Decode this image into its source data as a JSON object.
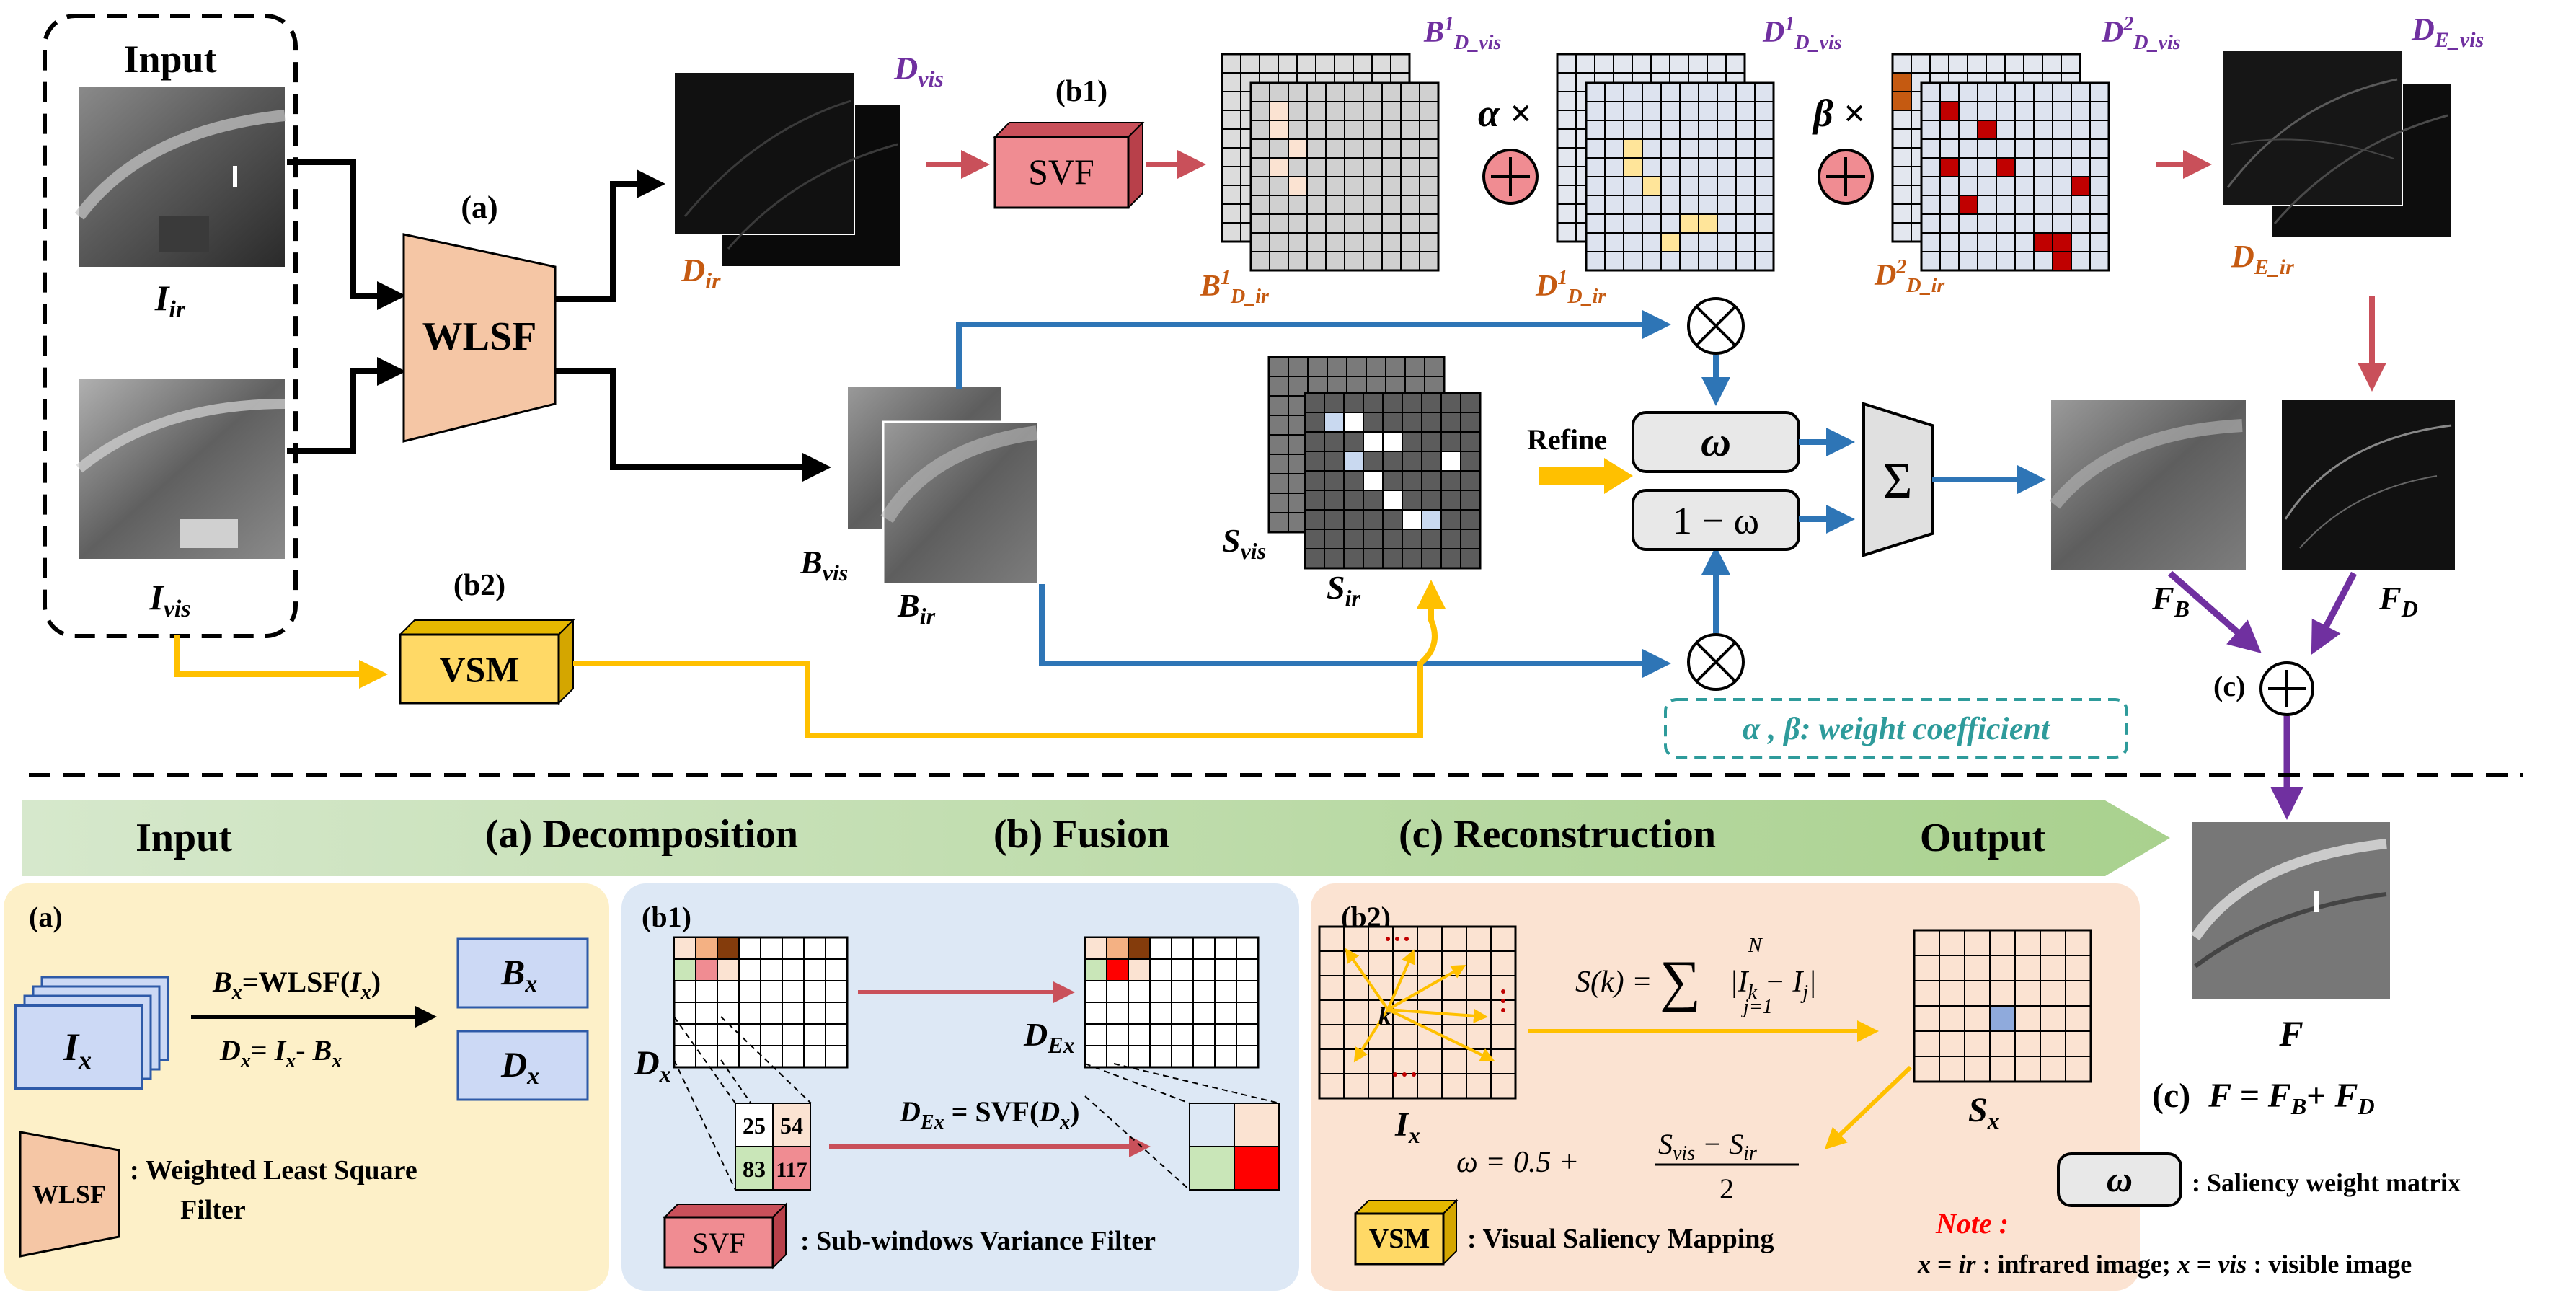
{
  "input": {
    "title": "Input",
    "ir_label": "I",
    "ir_sub": "ir",
    "vis_label": "I",
    "vis_sub": "vis"
  },
  "modules": {
    "a_label": "(a)",
    "wlsf": "WLSF",
    "b1_label": "(b1)",
    "svf": "SVF",
    "b2_label": "(b2)",
    "vsm": "VSM",
    "c_label": "(c)"
  },
  "detail": {
    "d_vis": "D",
    "d_vis_sub": "vis",
    "d_ir": "D",
    "d_ir_sub": "ir",
    "b1_dvis": "B",
    "b1_dvis_sup": "1",
    "b1_dvis_sub": "D_vis",
    "b1_dir": "B",
    "b1_dir_sup": "1",
    "b1_dir_sub": "D_ir",
    "d1_dvis": "D",
    "d1_dvis_sup": "1",
    "d1_dvis_sub": "D_vis",
    "d1_dir": "D",
    "d1_dir_sup": "1",
    "d1_dir_sub": "D_ir",
    "d2_dvis": "D",
    "d2_dvis_sup": "2",
    "d2_dvis_sub": "D_vis",
    "d2_dir": "D",
    "d2_dir_sup": "2",
    "d2_dir_sub": "D_ir",
    "de_vis": "D",
    "de_vis_sub": "E_vis",
    "de_ir": "D",
    "de_ir_sub": "E_ir",
    "alpha_times": "α ×",
    "beta_times": "β ×"
  },
  "base": {
    "b_vis": "B",
    "b_vis_sub": "vis",
    "b_ir": "B",
    "b_ir_sub": "ir",
    "s_vis": "S",
    "s_vis_sub": "vis",
    "s_ir": "S",
    "s_ir_sub": "ir",
    "refine": "Refine",
    "omega": "ω",
    "one_minus_omega": "1 − ω",
    "sigma": "Σ",
    "f_b": "F",
    "f_b_sub": "B",
    "f_d": "F",
    "f_d_sub": "D",
    "weight_note": "α , β: weight coefficient"
  },
  "stages": [
    "Input",
    "(a) Decomposition",
    "(b) Fusion",
    "(c) Reconstruction",
    "Output"
  ],
  "panel_a": {
    "label": "(a)",
    "ix": "I",
    "ix_sub": "x",
    "eq1": "B",
    "eq1_sub": "x",
    "eq1_rest": "=WLSF(",
    "eq1_i": "I",
    "eq1_isub": "x",
    "eq1_close": ")",
    "eq2": "D",
    "eq2_sub": "x",
    "eq2_rest": "= ",
    "eq2_i": "I",
    "eq2_isub": "x",
    "eq2_minus": "- ",
    "eq2_b": "B",
    "eq2_bsub": "x",
    "bx": "B",
    "bx_sub": "x",
    "dx": "D",
    "dx_sub": "x",
    "wlsf": "WLSF",
    "legend1": ": Weighted Least Square",
    "legend2": "Filter"
  },
  "panel_b1": {
    "label": "(b1)",
    "dx": "D",
    "dx_sub": "x",
    "dex": "D",
    "dex_sub": "Ex",
    "values": [
      "25",
      "54",
      "83",
      "117"
    ],
    "eq_left": "D",
    "eq_left_sub": "Ex",
    "eq_mid": " = SVF(",
    "eq_d": "D",
    "eq_dsub": "x",
    "eq_close": ")",
    "svf": "SVF",
    "legend": ": Sub-windows Variance Filter"
  },
  "panel_b2": {
    "label": "(b2)",
    "k": "k",
    "ix": "I",
    "ix_sub": "x",
    "sx": "S",
    "sx_sub": "x",
    "s_formula_lhs": "S(k) = ",
    "sum_top": "N",
    "sum_bottom": "j=1",
    "s_formula_rhs": "|I",
    "s_k": "k",
    "s_minus": " − I",
    "s_j": "j",
    "s_close": "|",
    "omega_lhs": "ω = 0.5 + ",
    "omega_num": "S",
    "omega_num_sub1": "vis",
    "omega_num_mid": " − S",
    "omega_num_sub2": "ir",
    "omega_den": "2",
    "vsm": "VSM",
    "legend": ": Visual Saliency Mapping"
  },
  "output": {
    "f": "F",
    "c_label": "(c)",
    "eq_f": "F",
    "eq_eq": " = ",
    "eq_fb": "F",
    "eq_fb_sub": "B",
    "eq_plus": "+ ",
    "eq_fd": "F",
    "eq_fd_sub": "D",
    "omega_box": "ω",
    "omega_legend": ": Saliency weight matrix",
    "note": "Note :",
    "note_line_x1": "x",
    "note_line_eq1": " = ",
    "note_line_ir": "ir",
    "note_line_t1": " : infrared image;   ",
    "note_line_x2": "x",
    "note_line_eq2": " = ",
    "note_line_vis": "vis",
    "note_line_t2": " : visible image"
  },
  "colors": {
    "wlsf_fill": "#f5c6a5",
    "svf_fill": "#f08c92",
    "vsm_fill": "#ffd966",
    "red_arrow": "#c9505a",
    "blue_arrow": "#2e75b6",
    "yellow_arrow": "#ffc000",
    "purple_arrow": "#7030a0",
    "teal": "#2e9b9b",
    "label_orange": "#c55a11",
    "label_purple": "#7030a0"
  }
}
